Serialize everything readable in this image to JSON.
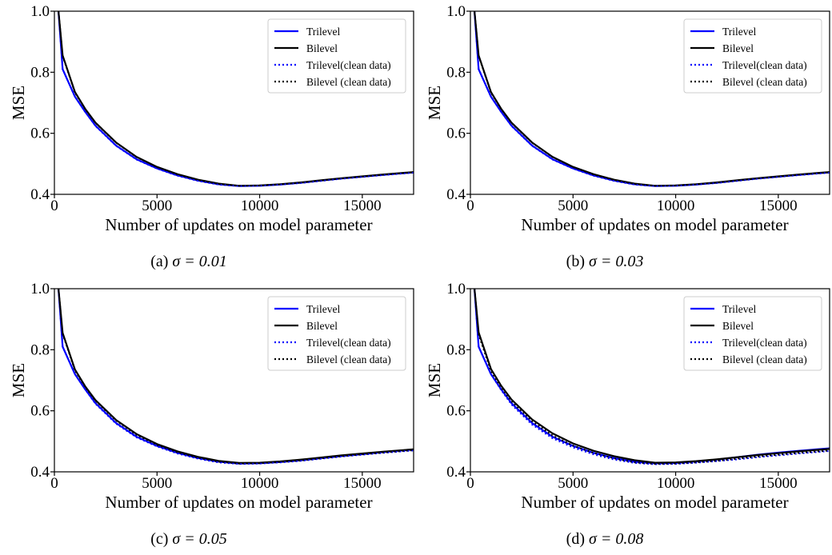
{
  "chart_data": [
    {
      "type": "line",
      "caption_prefix": "(a) ",
      "caption_math": "σ = 0.01",
      "xlabel": "Number of updates on model parameter",
      "ylabel": "MSE",
      "xlim": [
        0,
        17500
      ],
      "ylim": [
        0.4,
        1.0
      ],
      "xticks": [
        "0",
        "5000",
        "10000",
        "15000"
      ],
      "yticks": [
        "0.4",
        "0.6",
        "0.8",
        "1.0"
      ],
      "legend_position": "top-right",
      "x": [
        0,
        200,
        400,
        1000,
        1500,
        2000,
        3000,
        4000,
        5000,
        6000,
        7000,
        8000,
        9000,
        10000,
        11000,
        12000,
        13000,
        14000,
        15000,
        16000,
        17500
      ],
      "series": [
        {
          "name": "Trilevel",
          "color": "#0000ff",
          "dash": "solid",
          "values": [
            1.1,
            1.0,
            0.81,
            0.72,
            0.67,
            0.625,
            0.56,
            0.515,
            0.485,
            0.462,
            0.445,
            0.433,
            0.427,
            0.428,
            0.432,
            0.438,
            0.445,
            0.452,
            0.458,
            0.464,
            0.472
          ]
        },
        {
          "name": "Bilevel",
          "color": "#000000",
          "dash": "solid",
          "values": [
            1.1,
            1.0,
            0.855,
            0.735,
            0.68,
            0.635,
            0.57,
            0.523,
            0.49,
            0.466,
            0.448,
            0.435,
            0.428,
            0.429,
            0.433,
            0.439,
            0.446,
            0.453,
            0.459,
            0.465,
            0.473
          ]
        },
        {
          "name": "Trilevel(clean data)",
          "color": "#0000ff",
          "dash": "dotted",
          "values": [
            1.1,
            1.0,
            0.81,
            0.72,
            0.67,
            0.624,
            0.559,
            0.514,
            0.484,
            0.461,
            0.444,
            0.432,
            0.427,
            0.428,
            0.432,
            0.437,
            0.444,
            0.451,
            0.457,
            0.463,
            0.471
          ]
        },
        {
          "name": "Bilevel (clean data)",
          "color": "#000000",
          "dash": "dotted",
          "values": [
            1.1,
            1.0,
            0.853,
            0.733,
            0.679,
            0.634,
            0.569,
            0.522,
            0.489,
            0.465,
            0.447,
            0.434,
            0.428,
            0.429,
            0.433,
            0.438,
            0.445,
            0.452,
            0.458,
            0.464,
            0.472
          ]
        }
      ]
    },
    {
      "type": "line",
      "caption_prefix": "(b) ",
      "caption_math": "σ = 0.03",
      "xlabel": "Number of updates on model parameter",
      "ylabel": "MSE",
      "xlim": [
        0,
        17500
      ],
      "ylim": [
        0.4,
        1.0
      ],
      "xticks": [
        "0",
        "5000",
        "10000",
        "15000"
      ],
      "yticks": [
        "0.4",
        "0.6",
        "0.8",
        "1.0"
      ],
      "legend_position": "top-right",
      "x": [
        0,
        200,
        400,
        1000,
        1500,
        2000,
        3000,
        4000,
        5000,
        6000,
        7000,
        8000,
        9000,
        10000,
        11000,
        12000,
        13000,
        14000,
        15000,
        16000,
        17500
      ],
      "series": [
        {
          "name": "Trilevel",
          "color": "#0000ff",
          "dash": "solid",
          "values": [
            1.1,
            1.0,
            0.81,
            0.72,
            0.67,
            0.625,
            0.56,
            0.515,
            0.485,
            0.462,
            0.445,
            0.433,
            0.427,
            0.428,
            0.432,
            0.438,
            0.445,
            0.452,
            0.458,
            0.464,
            0.472
          ]
        },
        {
          "name": "Bilevel",
          "color": "#000000",
          "dash": "solid",
          "values": [
            1.1,
            1.0,
            0.855,
            0.735,
            0.68,
            0.635,
            0.57,
            0.523,
            0.49,
            0.466,
            0.448,
            0.435,
            0.428,
            0.429,
            0.433,
            0.439,
            0.446,
            0.453,
            0.459,
            0.465,
            0.473
          ]
        },
        {
          "name": "Trilevel(clean data)",
          "color": "#0000ff",
          "dash": "dotted",
          "values": [
            1.1,
            1.0,
            0.81,
            0.72,
            0.67,
            0.624,
            0.559,
            0.514,
            0.484,
            0.461,
            0.444,
            0.432,
            0.427,
            0.428,
            0.432,
            0.437,
            0.444,
            0.451,
            0.457,
            0.463,
            0.471
          ]
        },
        {
          "name": "Bilevel (clean data)",
          "color": "#000000",
          "dash": "dotted",
          "values": [
            1.1,
            1.0,
            0.853,
            0.733,
            0.679,
            0.634,
            0.569,
            0.522,
            0.489,
            0.465,
            0.447,
            0.434,
            0.428,
            0.429,
            0.433,
            0.438,
            0.445,
            0.452,
            0.458,
            0.464,
            0.472
          ]
        }
      ]
    },
    {
      "type": "line",
      "caption_prefix": "(c) ",
      "caption_math": "σ = 0.05",
      "xlabel": "Number of updates on model parameter",
      "ylabel": "MSE",
      "xlim": [
        0,
        17500
      ],
      "ylim": [
        0.4,
        1.0
      ],
      "xticks": [
        "0",
        "5000",
        "10000",
        "15000"
      ],
      "yticks": [
        "0.4",
        "0.6",
        "0.8",
        "1.0"
      ],
      "legend_position": "top-right",
      "x": [
        0,
        200,
        400,
        1000,
        1500,
        2000,
        3000,
        4000,
        5000,
        6000,
        7000,
        8000,
        9000,
        10000,
        11000,
        12000,
        13000,
        14000,
        15000,
        16000,
        17500
      ],
      "series": [
        {
          "name": "Trilevel",
          "color": "#0000ff",
          "dash": "solid",
          "values": [
            1.1,
            1.0,
            0.81,
            0.72,
            0.67,
            0.625,
            0.56,
            0.515,
            0.485,
            0.462,
            0.445,
            0.433,
            0.427,
            0.428,
            0.432,
            0.438,
            0.445,
            0.452,
            0.458,
            0.465,
            0.473
          ]
        },
        {
          "name": "Bilevel",
          "color": "#000000",
          "dash": "solid",
          "values": [
            1.1,
            1.0,
            0.855,
            0.735,
            0.68,
            0.635,
            0.57,
            0.524,
            0.491,
            0.467,
            0.449,
            0.436,
            0.429,
            0.43,
            0.434,
            0.44,
            0.447,
            0.454,
            0.46,
            0.466,
            0.474
          ]
        },
        {
          "name": "Trilevel(clean data)",
          "color": "#0000ff",
          "dash": "dotted",
          "values": [
            1.1,
            1.0,
            0.81,
            0.72,
            0.67,
            0.623,
            0.558,
            0.513,
            0.483,
            0.46,
            0.443,
            0.431,
            0.426,
            0.427,
            0.431,
            0.436,
            0.443,
            0.45,
            0.456,
            0.462,
            0.47
          ]
        },
        {
          "name": "Bilevel (clean data)",
          "color": "#000000",
          "dash": "dotted",
          "values": [
            1.1,
            1.0,
            0.852,
            0.732,
            0.678,
            0.633,
            0.568,
            0.521,
            0.488,
            0.464,
            0.446,
            0.433,
            0.427,
            0.428,
            0.432,
            0.437,
            0.444,
            0.451,
            0.457,
            0.463,
            0.471
          ]
        }
      ]
    },
    {
      "type": "line",
      "caption_prefix": "(d) ",
      "caption_math": "σ = 0.08",
      "xlabel": "Number of updates on model parameter",
      "ylabel": "MSE",
      "xlim": [
        0,
        17500
      ],
      "ylim": [
        0.4,
        1.0
      ],
      "xticks": [
        "0",
        "5000",
        "10000",
        "15000"
      ],
      "yticks": [
        "0.4",
        "0.6",
        "0.8",
        "1.0"
      ],
      "legend_position": "top-right",
      "x": [
        0,
        200,
        400,
        1000,
        1500,
        2000,
        3000,
        4000,
        5000,
        6000,
        7000,
        8000,
        9000,
        10000,
        11000,
        12000,
        13000,
        14000,
        15000,
        16000,
        17500
      ],
      "series": [
        {
          "name": "Trilevel",
          "color": "#0000ff",
          "dash": "solid",
          "values": [
            1.1,
            1.0,
            0.81,
            0.72,
            0.67,
            0.625,
            0.56,
            0.515,
            0.485,
            0.462,
            0.445,
            0.433,
            0.428,
            0.429,
            0.434,
            0.44,
            0.448,
            0.456,
            0.463,
            0.469,
            0.477
          ]
        },
        {
          "name": "Bilevel",
          "color": "#000000",
          "dash": "solid",
          "values": [
            1.1,
            1.0,
            0.857,
            0.737,
            0.682,
            0.637,
            0.572,
            0.526,
            0.493,
            0.469,
            0.451,
            0.438,
            0.43,
            0.431,
            0.435,
            0.441,
            0.448,
            0.455,
            0.461,
            0.467,
            0.475
          ]
        },
        {
          "name": "Trilevel(clean data)",
          "color": "#0000ff",
          "dash": "dotted",
          "values": [
            1.1,
            1.0,
            0.81,
            0.72,
            0.668,
            0.621,
            0.555,
            0.51,
            0.48,
            0.457,
            0.44,
            0.429,
            0.425,
            0.426,
            0.43,
            0.435,
            0.441,
            0.448,
            0.454,
            0.46,
            0.468
          ]
        },
        {
          "name": "Bilevel (clean data)",
          "color": "#000000",
          "dash": "dotted",
          "values": [
            1.1,
            1.0,
            0.85,
            0.73,
            0.676,
            0.631,
            0.566,
            0.519,
            0.486,
            0.462,
            0.444,
            0.431,
            0.426,
            0.427,
            0.431,
            0.436,
            0.443,
            0.45,
            0.456,
            0.462,
            0.47
          ]
        }
      ]
    }
  ]
}
